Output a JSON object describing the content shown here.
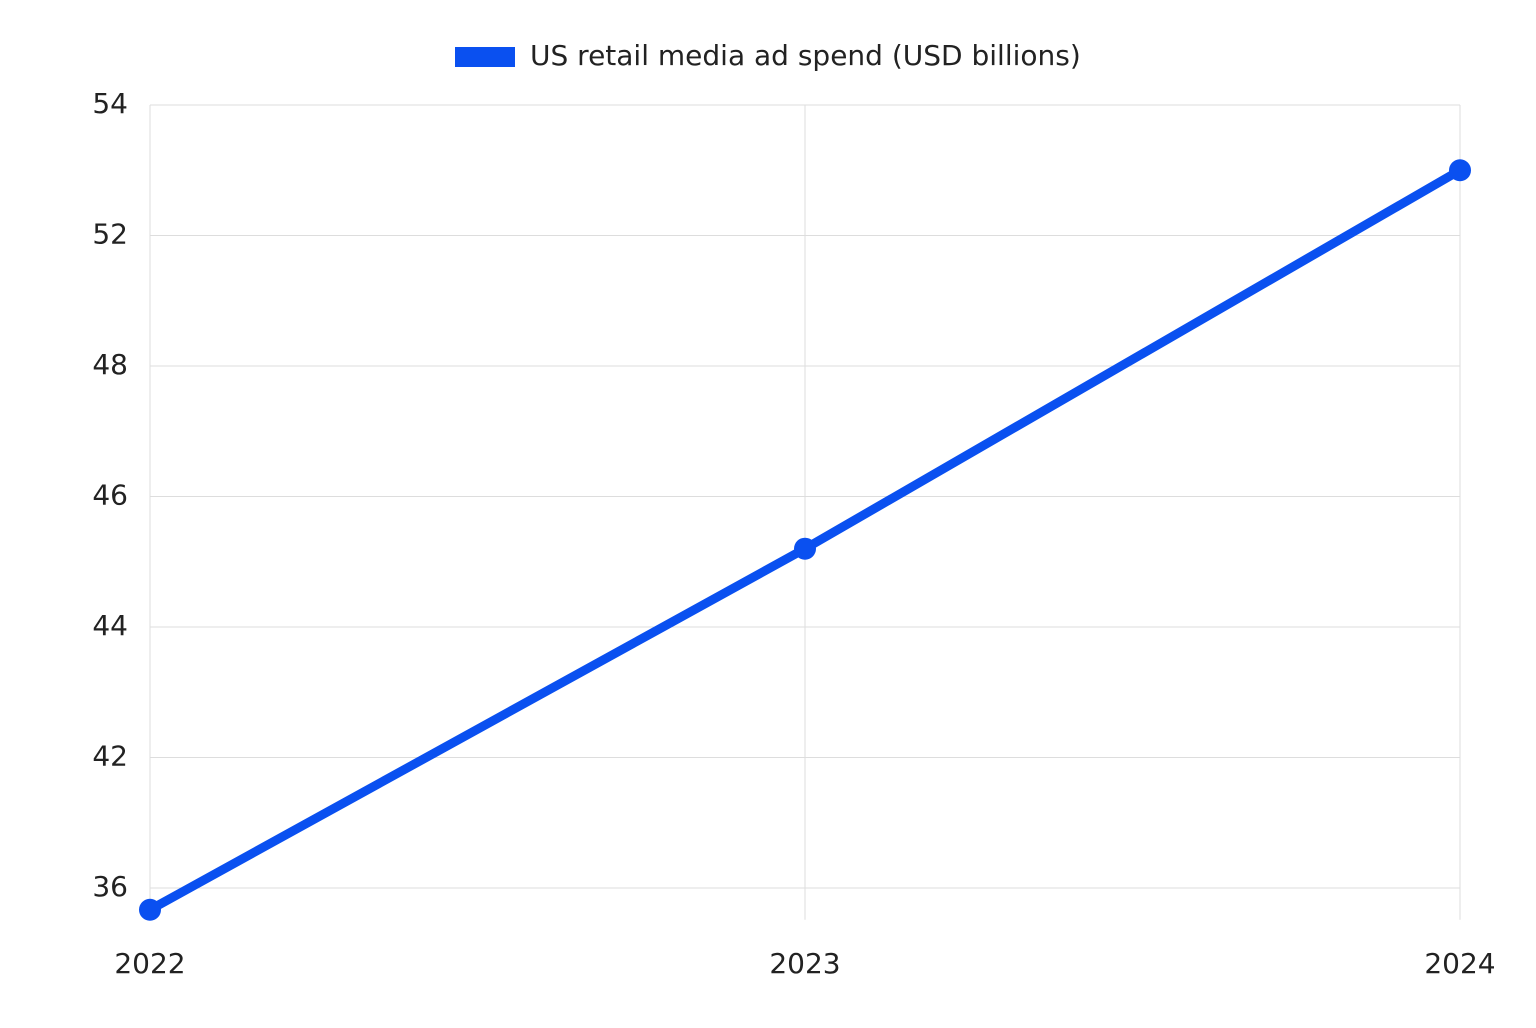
{
  "chart_data": {
    "type": "line",
    "categories": [
      "2022",
      "2023",
      "2024"
    ],
    "series": [
      {
        "name": "US retail media ad spend (USD billions)",
        "color": "#0a50f0",
        "values": [
          35,
          45.2,
          53
        ]
      }
    ],
    "ylim": [
      35,
      54
    ],
    "yticks": [
      36,
      42,
      44,
      46,
      48,
      52,
      54
    ],
    "grid": true,
    "legend": "top"
  }
}
